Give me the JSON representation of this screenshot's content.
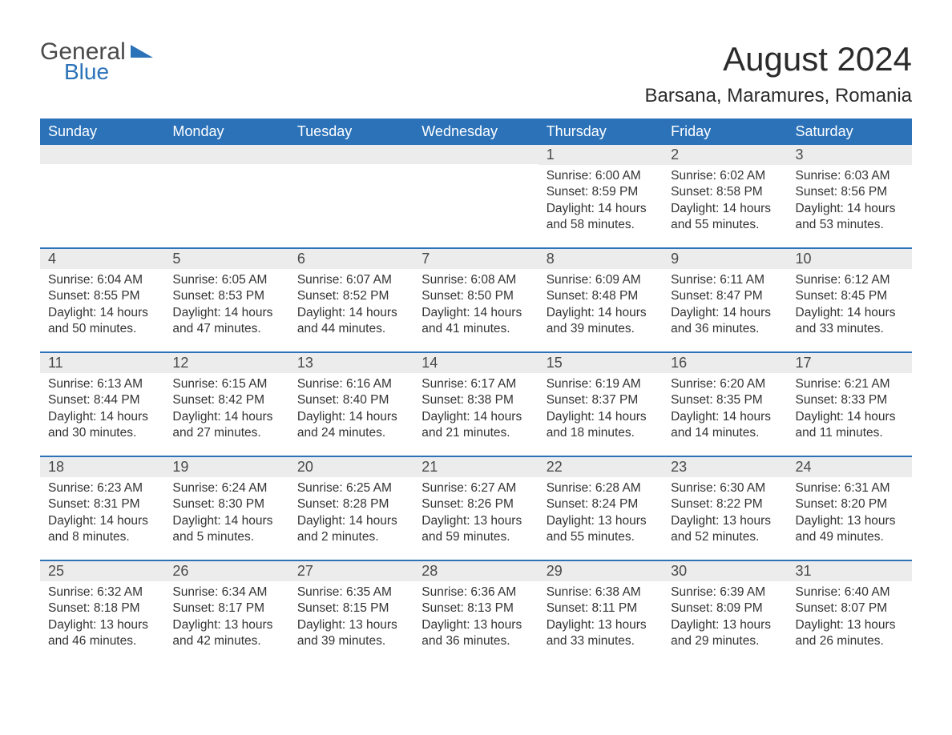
{
  "logo": {
    "text1": "General",
    "text2": "Blue",
    "accent_color": "#2b72b9",
    "text_color": "#4a4a4a"
  },
  "title": "August 2024",
  "location": "Barsana, Maramures, Romania",
  "colors": {
    "header_bg": "#2b72b9",
    "header_text": "#ffffff",
    "daynum_bg": "#ececec",
    "body_text": "#333333",
    "rule": "#2b72b9",
    "page_bg": "#ffffff"
  },
  "fonts": {
    "title_size": 42,
    "location_size": 24,
    "dow_size": 18,
    "daynum_size": 18,
    "body_size": 15.5
  },
  "layout": {
    "columns": 7,
    "rows": 5,
    "first_weekday_index": 4
  },
  "weekdays": [
    "Sunday",
    "Monday",
    "Tuesday",
    "Wednesday",
    "Thursday",
    "Friday",
    "Saturday"
  ],
  "days": [
    {
      "n": 1,
      "sunrise": "6:00 AM",
      "sunset": "8:59 PM",
      "daylight": "14 hours and 58 minutes."
    },
    {
      "n": 2,
      "sunrise": "6:02 AM",
      "sunset": "8:58 PM",
      "daylight": "14 hours and 55 minutes."
    },
    {
      "n": 3,
      "sunrise": "6:03 AM",
      "sunset": "8:56 PM",
      "daylight": "14 hours and 53 minutes."
    },
    {
      "n": 4,
      "sunrise": "6:04 AM",
      "sunset": "8:55 PM",
      "daylight": "14 hours and 50 minutes."
    },
    {
      "n": 5,
      "sunrise": "6:05 AM",
      "sunset": "8:53 PM",
      "daylight": "14 hours and 47 minutes."
    },
    {
      "n": 6,
      "sunrise": "6:07 AM",
      "sunset": "8:52 PM",
      "daylight": "14 hours and 44 minutes."
    },
    {
      "n": 7,
      "sunrise": "6:08 AM",
      "sunset": "8:50 PM",
      "daylight": "14 hours and 41 minutes."
    },
    {
      "n": 8,
      "sunrise": "6:09 AM",
      "sunset": "8:48 PM",
      "daylight": "14 hours and 39 minutes."
    },
    {
      "n": 9,
      "sunrise": "6:11 AM",
      "sunset": "8:47 PM",
      "daylight": "14 hours and 36 minutes."
    },
    {
      "n": 10,
      "sunrise": "6:12 AM",
      "sunset": "8:45 PM",
      "daylight": "14 hours and 33 minutes."
    },
    {
      "n": 11,
      "sunrise": "6:13 AM",
      "sunset": "8:44 PM",
      "daylight": "14 hours and 30 minutes."
    },
    {
      "n": 12,
      "sunrise": "6:15 AM",
      "sunset": "8:42 PM",
      "daylight": "14 hours and 27 minutes."
    },
    {
      "n": 13,
      "sunrise": "6:16 AM",
      "sunset": "8:40 PM",
      "daylight": "14 hours and 24 minutes."
    },
    {
      "n": 14,
      "sunrise": "6:17 AM",
      "sunset": "8:38 PM",
      "daylight": "14 hours and 21 minutes."
    },
    {
      "n": 15,
      "sunrise": "6:19 AM",
      "sunset": "8:37 PM",
      "daylight": "14 hours and 18 minutes."
    },
    {
      "n": 16,
      "sunrise": "6:20 AM",
      "sunset": "8:35 PM",
      "daylight": "14 hours and 14 minutes."
    },
    {
      "n": 17,
      "sunrise": "6:21 AM",
      "sunset": "8:33 PM",
      "daylight": "14 hours and 11 minutes."
    },
    {
      "n": 18,
      "sunrise": "6:23 AM",
      "sunset": "8:31 PM",
      "daylight": "14 hours and 8 minutes."
    },
    {
      "n": 19,
      "sunrise": "6:24 AM",
      "sunset": "8:30 PM",
      "daylight": "14 hours and 5 minutes."
    },
    {
      "n": 20,
      "sunrise": "6:25 AM",
      "sunset": "8:28 PM",
      "daylight": "14 hours and 2 minutes."
    },
    {
      "n": 21,
      "sunrise": "6:27 AM",
      "sunset": "8:26 PM",
      "daylight": "13 hours and 59 minutes."
    },
    {
      "n": 22,
      "sunrise": "6:28 AM",
      "sunset": "8:24 PM",
      "daylight": "13 hours and 55 minutes."
    },
    {
      "n": 23,
      "sunrise": "6:30 AM",
      "sunset": "8:22 PM",
      "daylight": "13 hours and 52 minutes."
    },
    {
      "n": 24,
      "sunrise": "6:31 AM",
      "sunset": "8:20 PM",
      "daylight": "13 hours and 49 minutes."
    },
    {
      "n": 25,
      "sunrise": "6:32 AM",
      "sunset": "8:18 PM",
      "daylight": "13 hours and 46 minutes."
    },
    {
      "n": 26,
      "sunrise": "6:34 AM",
      "sunset": "8:17 PM",
      "daylight": "13 hours and 42 minutes."
    },
    {
      "n": 27,
      "sunrise": "6:35 AM",
      "sunset": "8:15 PM",
      "daylight": "13 hours and 39 minutes."
    },
    {
      "n": 28,
      "sunrise": "6:36 AM",
      "sunset": "8:13 PM",
      "daylight": "13 hours and 36 minutes."
    },
    {
      "n": 29,
      "sunrise": "6:38 AM",
      "sunset": "8:11 PM",
      "daylight": "13 hours and 33 minutes."
    },
    {
      "n": 30,
      "sunrise": "6:39 AM",
      "sunset": "8:09 PM",
      "daylight": "13 hours and 29 minutes."
    },
    {
      "n": 31,
      "sunrise": "6:40 AM",
      "sunset": "8:07 PM",
      "daylight": "13 hours and 26 minutes."
    }
  ],
  "labels": {
    "sunrise": "Sunrise: ",
    "sunset": "Sunset: ",
    "daylight": "Daylight: "
  }
}
